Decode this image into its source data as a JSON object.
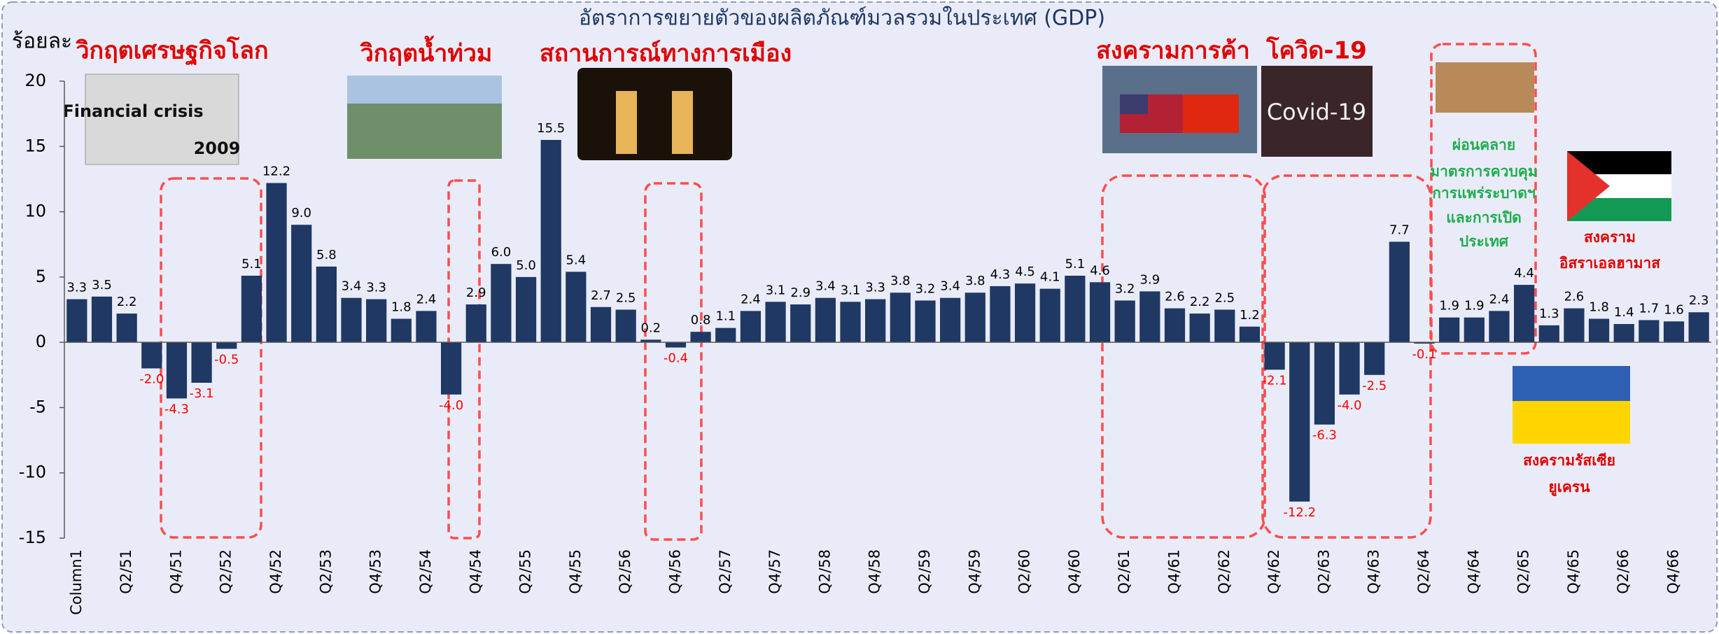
{
  "chart_data": {
    "type": "bar",
    "title": "อัตราการขยายตัวของผลิตภัณฑ์มวลรวมในประเทศ (GDP)",
    "y_label": "ร้อยละ",
    "categories": [
      "Column1",
      null,
      "Q2/51",
      null,
      "Q4/51",
      null,
      "Q2/52",
      null,
      "Q4/52",
      null,
      "Q2/53",
      null,
      "Q4/53",
      null,
      "Q2/54",
      null,
      "Q4/54",
      null,
      "Q2/55",
      null,
      "Q4/55",
      null,
      "Q2/56",
      null,
      "Q4/56",
      null,
      "Q2/57",
      null,
      "Q4/57",
      null,
      "Q2/58",
      null,
      "Q4/58",
      null,
      "Q2/59",
      null,
      "Q4/59",
      null,
      "Q2/60",
      null,
      "Q4/60",
      null,
      "Q2/61",
      null,
      "Q4/61",
      null,
      "Q2/62",
      null,
      "Q4/62",
      null,
      "Q2/63",
      null,
      "Q4/63",
      null,
      "Q2/64",
      null,
      "Q4/64",
      null,
      "Q2/65",
      null,
      "Q4/65",
      null,
      "Q2/66",
      null,
      "Q4/66",
      null
    ],
    "values": [
      3.3,
      3.5,
      2.2,
      -2.0,
      -4.3,
      -3.1,
      -0.5,
      5.1,
      12.2,
      9.0,
      5.8,
      3.4,
      3.3,
      1.8,
      2.4,
      -4.0,
      2.9,
      6.0,
      5.0,
      15.5,
      5.4,
      2.7,
      2.5,
      0.2,
      -0.4,
      0.8,
      1.1,
      2.4,
      3.1,
      2.9,
      3.4,
      3.1,
      3.3,
      3.8,
      3.2,
      3.4,
      3.8,
      4.3,
      4.5,
      4.1,
      5.1,
      4.6,
      3.2,
      3.9,
      2.6,
      2.2,
      2.5,
      1.2,
      -2.1,
      -12.2,
      -6.3,
      -4.0,
      -2.5,
      7.7,
      -0.1,
      1.9,
      1.9,
      2.4,
      4.4,
      1.3,
      2.6,
      1.8,
      1.4,
      1.7,
      1.6,
      2.3
    ],
    "value_labels": [
      "3.3",
      "3.5",
      "2.2",
      "-2.0",
      "-4.3",
      "-3.1",
      "-0.5",
      "5.1",
      "12.2",
      "9.0",
      "5.8",
      "3.4",
      "3.3",
      "1.8",
      "2.4",
      "-4.0",
      "2.9",
      "6.0",
      "5.0",
      "15.5",
      "5.4",
      "2.7",
      "2.5",
      "0.2",
      "-0.4",
      "0.8",
      "1.1",
      "2.4",
      "3.1",
      "2.9",
      "3.4",
      "3.1",
      "3.3",
      "3.8",
      "3.2",
      "3.4",
      "3.8",
      "4.3",
      "4.5",
      "4.1",
      "5.1",
      "4.6",
      "3.2",
      "3.9",
      "2.6",
      "2.2",
      "2.5",
      "1.2",
      "-2.1",
      "-12.2",
      "-6.3",
      "-4.0",
      "-2.5",
      "7.7",
      "-0.1",
      "1.9",
      "1.9",
      "2.4",
      "4.4",
      "1.3",
      "2.6",
      "1.8",
      "1.4",
      "1.7",
      "1.6",
      "2.3"
    ],
    "color": "#1f3864",
    "positive_label_color": "#000000",
    "negative_label_color": "#ff0000",
    "ylim": [
      -15,
      20
    ],
    "yticks": [
      -15,
      -10,
      -5,
      0,
      5,
      10,
      15,
      20
    ],
    "grid": false,
    "annotations": [
      "วิกฤตเศรษฐกิจโลก",
      "วิกฤตน้ำท่วม",
      "สถานการณ์ทางการเมือง",
      "สงครามการค้า",
      "โควิด-19",
      "ผ่อนคลาย",
      "มาตรการควบคุม",
      "การแพร่ระบาดฯ",
      "และการเปิด",
      "ประเทศ",
      "สงคราม",
      "อิสราเอลฮามาส",
      "สงครามรัสเซีย",
      "ยูเครน"
    ],
    "image_texts": [
      "Financial crisis",
      "2009",
      "Covid-19"
    ]
  }
}
